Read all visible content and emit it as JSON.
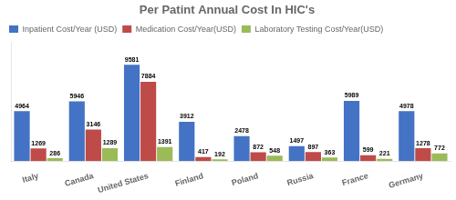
{
  "chart_data": {
    "type": "bar",
    "title": "Per Patint Annual Cost In HIC's",
    "categories": [
      "Italy",
      "Canada",
      "United States",
      "Finland",
      "Poland",
      "Russia",
      "France",
      "Germany"
    ],
    "series": [
      {
        "name": "Inpatient Cost/Year (USD)",
        "color": "#4472C4",
        "values": [
          4964,
          5946,
          9581,
          3912,
          2478,
          1497,
          5989,
          4978
        ]
      },
      {
        "name": "Medication Cost/Year(USD)",
        "color": "#BE4B48",
        "values": [
          1269,
          3146,
          7884,
          417,
          872,
          897,
          599,
          1278
        ]
      },
      {
        "name": "Laboratory Testing Cost/Year(USD)",
        "color": "#9BBB59",
        "values": [
          286,
          1289,
          1391,
          192,
          548,
          363,
          221,
          772
        ]
      }
    ],
    "ylim": [
      0,
      11800
    ],
    "grid": false,
    "legend": "upper left",
    "data_labels": true,
    "tick_labels": "x"
  }
}
